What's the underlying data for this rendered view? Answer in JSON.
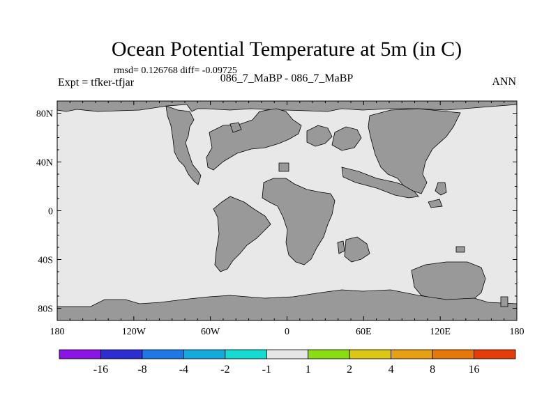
{
  "title": "Ocean Potential Temperature at 5m (in C)",
  "stats_line": "rmsd= 0.126768 diff= -0.09725",
  "left_label": "Expt = tfker-tfjar",
  "center_label": "086_7_MaBP - 086_7_MaBP",
  "right_label": "ANN",
  "map": {
    "projection": "cylindrical-equidistant",
    "lon_range": [
      -180,
      180
    ],
    "lat_range": [
      -90,
      90
    ],
    "ocean_fill": "#e8e8e8",
    "land_fill": "#999999",
    "lon_ticks": [
      {
        "label": "180"
      },
      {
        "label": "120W"
      },
      {
        "label": "60W"
      },
      {
        "label": "0"
      },
      {
        "label": "60E"
      },
      {
        "label": "120E"
      },
      {
        "label": "180"
      }
    ],
    "lat_ticks": [
      {
        "label": "80N"
      },
      {
        "label": "40N"
      },
      {
        "label": "0"
      },
      {
        "label": "40S"
      },
      {
        "label": "80S"
      }
    ]
  },
  "colorbar": {
    "colors": [
      "#8c14e6",
      "#2d2dd2",
      "#1e78e6",
      "#14aadc",
      "#14dcd2",
      "#e6e6e6",
      "#8cdc14",
      "#dcc814",
      "#e6a014",
      "#e6780a",
      "#e63c0a"
    ],
    "labels": [
      "-16",
      "-8",
      "-4",
      "-2",
      "-1",
      "1",
      "2",
      "4",
      "8",
      "16"
    ]
  }
}
